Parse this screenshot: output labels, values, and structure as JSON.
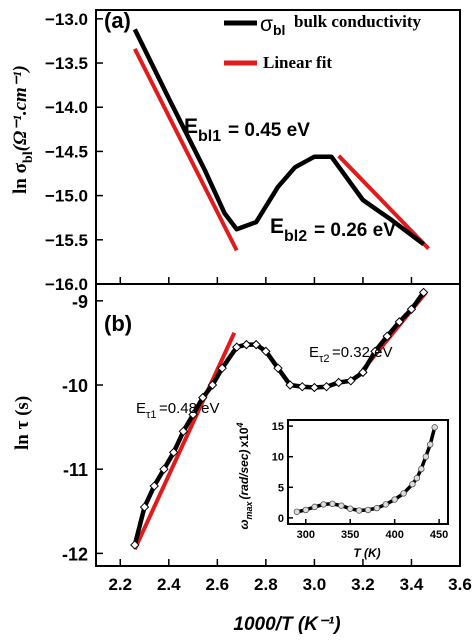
{
  "chart_data": [
    {
      "type": "line",
      "panel_label": "(a)",
      "xlabel": "1000/T (K⁻¹)",
      "ylabel_main": "ln σ",
      "ylabel_sub": "bl",
      "ylabel_unit": "(Ω⁻¹.cm⁻¹)",
      "xlim": [
        2.1,
        3.6
      ],
      "ylim": [
        -16.0,
        -12.9
      ],
      "ytick_values": [
        -16.0,
        -15.5,
        -15.0,
        -14.5,
        -14.0,
        -13.5,
        -13.0
      ],
      "ytick_labels": [
        "−16.0",
        "−15.5",
        "−15.0",
        "−14.5",
        "−14.0",
        "−13.5",
        "−13.0"
      ],
      "legend": [
        {
          "symbol": "σ",
          "sub": "bl",
          "text": "bulk conductivity",
          "color": "#000000"
        },
        {
          "text": "Linear fit",
          "color": "#e31a1c"
        }
      ],
      "legend_position": "top-right",
      "annotations": [
        {
          "main": "E",
          "sub": "bl1",
          "text": "= 0.45 eV"
        },
        {
          "main": "E",
          "sub": "bl2",
          "text": "= 0.26 eV"
        }
      ],
      "series": [
        {
          "name": "σbl bulk conductivity",
          "color": "#000000",
          "x": [
            2.26,
            2.4,
            2.55,
            2.63,
            2.68,
            2.76,
            2.85,
            2.92,
            3.0,
            3.07,
            3.2,
            3.32,
            3.45
          ],
          "y": [
            -13.12,
            -13.9,
            -14.72,
            -15.2,
            -15.38,
            -15.3,
            -14.9,
            -14.68,
            -14.56,
            -14.56,
            -15.05,
            -15.28,
            -15.55
          ]
        }
      ],
      "fits": [
        {
          "name": "Linear fit 1",
          "color": "#e31a1c",
          "x": [
            2.26,
            2.68
          ],
          "y": [
            -13.34,
            -15.62
          ]
        },
        {
          "name": "Linear fit 2",
          "color": "#e31a1c",
          "x": [
            3.1,
            3.47
          ],
          "y": [
            -14.55,
            -15.6
          ]
        }
      ]
    },
    {
      "type": "line",
      "panel_label": "(b)",
      "xlabel": "1000/T (K⁻¹)",
      "xtick_values": [
        2.2,
        2.4,
        2.6,
        2.8,
        3.0,
        3.2,
        3.4,
        3.6
      ],
      "xtick_labels": [
        "2.2",
        "2.4",
        "2.6",
        "2.8",
        "3.0",
        "3.2",
        "3.4",
        "3.6"
      ],
      "ylabel": "ln τ (s)",
      "xlim": [
        2.1,
        3.6
      ],
      "ylim": [
        -12.15,
        -8.8
      ],
      "ytick_values": [
        -12,
        -11,
        -10,
        -9
      ],
      "ytick_labels": [
        "-12",
        "-11",
        "-10",
        "-9"
      ],
      "annotations": [
        {
          "main": "E",
          "sub": "τ1",
          "text": "=0.48 eV"
        },
        {
          "main": "E",
          "sub": "τ2",
          "text": "=0.32 eV"
        }
      ],
      "series": [
        {
          "name": "ln τ",
          "color": "#000000",
          "marker": "diamond",
          "x": [
            2.26,
            2.3,
            2.34,
            2.38,
            2.42,
            2.46,
            2.5,
            2.54,
            2.58,
            2.62,
            2.68,
            2.72,
            2.76,
            2.8,
            2.85,
            2.9,
            2.95,
            3.0,
            3.05,
            3.1,
            3.15,
            3.2,
            3.25,
            3.3,
            3.35,
            3.4,
            3.45
          ],
          "y": [
            -11.9,
            -11.45,
            -11.2,
            -11.0,
            -10.8,
            -10.55,
            -10.35,
            -10.15,
            -10.0,
            -9.8,
            -9.55,
            -9.52,
            -9.52,
            -9.6,
            -9.8,
            -10.0,
            -10.02,
            -10.03,
            -10.02,
            -9.97,
            -9.95,
            -9.85,
            -9.6,
            -9.42,
            -9.25,
            -9.1,
            -8.9
          ]
        }
      ],
      "fits": [
        {
          "name": "Linear fit 1",
          "color": "#e31a1c",
          "x": [
            2.26,
            2.67
          ],
          "y": [
            -11.95,
            -9.38
          ]
        },
        {
          "name": "Linear fit 2",
          "color": "#e31a1c",
          "x": [
            3.2,
            3.46
          ],
          "y": [
            -9.82,
            -8.9
          ]
        }
      ]
    },
    {
      "type": "line",
      "panel_label": "inset",
      "xlabel": "T (K)",
      "ylabel_main": "ω",
      "ylabel_sub": "max",
      "ylabel_unit": "(rad/sec)",
      "ylabel_mult": "x10",
      "ylabel_exp": "4",
      "xlim": [
        280,
        460
      ],
      "ylim": [
        -1,
        16
      ],
      "xtick_values": [
        300,
        350,
        400,
        450
      ],
      "xtick_labels": [
        "300",
        "350",
        "400",
        "450"
      ],
      "ytick_values": [
        0,
        5,
        10,
        15
      ],
      "ytick_labels": [
        "0",
        "5",
        "10",
        "15"
      ],
      "series": [
        {
          "name": "ω max",
          "color": "#000000",
          "marker": "circle",
          "x": [
            290,
            300,
            310,
            320,
            330,
            340,
            350,
            360,
            370,
            380,
            390,
            400,
            410,
            420,
            425,
            430,
            435,
            440,
            445
          ],
          "y": [
            1.0,
            1.3,
            1.8,
            2.2,
            2.3,
            2.0,
            1.5,
            1.2,
            1.3,
            1.6,
            2.2,
            3.0,
            4.0,
            5.5,
            6.5,
            8.0,
            10.0,
            12.0,
            14.8
          ]
        }
      ]
    }
  ]
}
